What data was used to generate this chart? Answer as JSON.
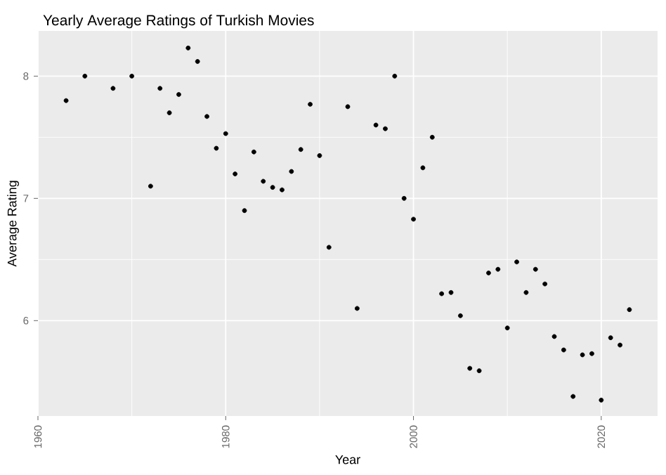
{
  "chart_data": {
    "type": "scatter",
    "title": "Yearly Average Ratings of Turkish Movies",
    "xlabel": "Year",
    "ylabel": "Average Rating",
    "x": [
      1963,
      1965,
      1968,
      1970,
      1972,
      1973,
      1974,
      1975,
      1976,
      1977,
      1978,
      1979,
      1980,
      1981,
      1982,
      1983,
      1984,
      1985,
      1986,
      1987,
      1988,
      1989,
      1990,
      1991,
      1993,
      1994,
      1996,
      1997,
      1998,
      1999,
      2000,
      2001,
      2002,
      2003,
      2004,
      2005,
      2006,
      2007,
      2008,
      2009,
      2010,
      2011,
      2012,
      2013,
      2014,
      2015,
      2016,
      2017,
      2018,
      2019,
      2020,
      2021,
      2022,
      2023
    ],
    "values": [
      7.8,
      8.0,
      7.9,
      8.0,
      7.1,
      7.9,
      7.7,
      7.85,
      8.23,
      8.12,
      7.67,
      7.41,
      7.53,
      7.2,
      6.9,
      7.38,
      7.14,
      7.09,
      7.07,
      7.22,
      7.4,
      7.77,
      7.35,
      6.6,
      7.75,
      6.1,
      7.6,
      7.57,
      8.0,
      7.0,
      6.83,
      7.25,
      7.5,
      6.22,
      6.23,
      6.04,
      5.61,
      5.59,
      6.39,
      6.42,
      5.94,
      6.48,
      6.23,
      6.42,
      6.3,
      5.87,
      5.76,
      5.38,
      5.72,
      5.73,
      5.35,
      5.86,
      5.8,
      6.09
    ],
    "color": "#000000",
    "marker": "circle",
    "grid": true,
    "xlim": [
      1960,
      2026
    ],
    "ylim": [
      5.22,
      8.37
    ],
    "xticks": [
      1960,
      1980,
      2000,
      2020
    ],
    "yticks": [
      6,
      7,
      8
    ]
  }
}
